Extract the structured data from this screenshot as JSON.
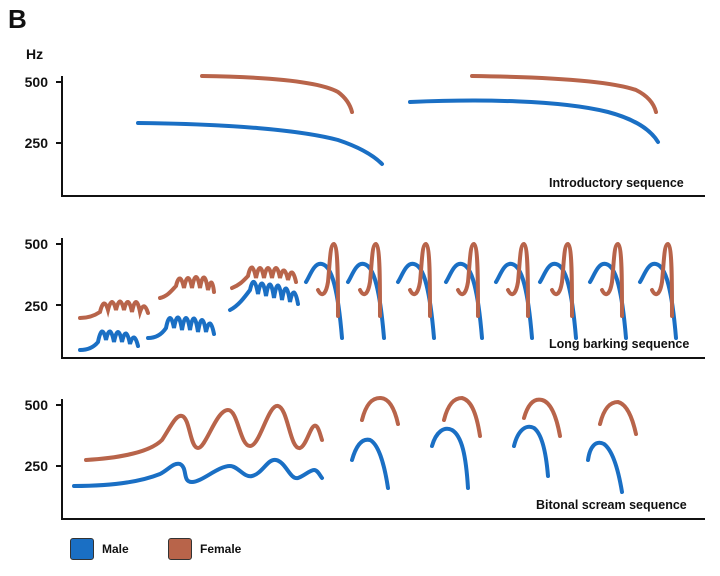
{
  "figure": {
    "panel_letter": "B",
    "unit": "Hz"
  },
  "colors": {
    "male": "#1a6fc4",
    "female": "#b8644a"
  },
  "panels": [
    {
      "name": "introductory",
      "label": "Introductory sequence",
      "ticks": [
        "500",
        "250"
      ]
    },
    {
      "name": "long-barking",
      "label": "Long barking sequence",
      "ticks": [
        "500",
        "250"
      ]
    },
    {
      "name": "bitonal-scream",
      "label": "Bitonal scream sequence",
      "ticks": [
        "500",
        "250"
      ]
    }
  ],
  "legend": [
    {
      "label": "Male",
      "series": "male"
    },
    {
      "label": "Female",
      "series": "female"
    }
  ]
}
